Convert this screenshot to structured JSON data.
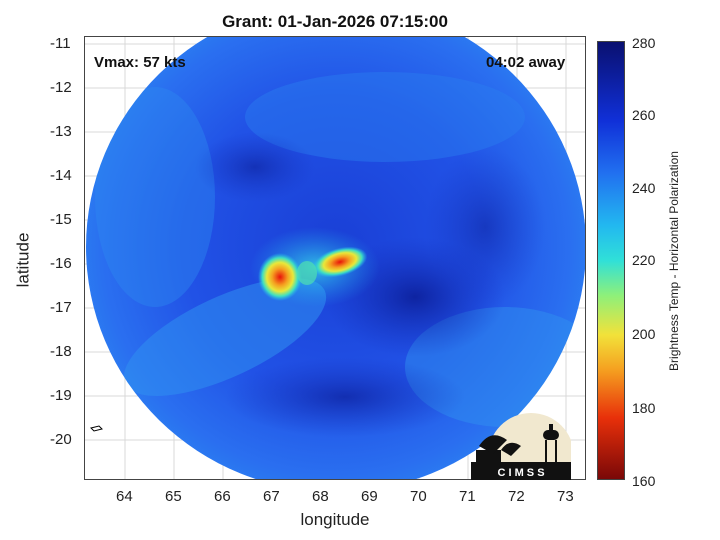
{
  "title": "Grant: 01-Jan-2026 07:15:00",
  "vmax_label": "Vmax: 57 kts",
  "time_away": "04:02 away",
  "xlabel": "longitude",
  "ylabel": "latitude",
  "x_ticks": [
    "64",
    "65",
    "66",
    "67",
    "68",
    "69",
    "70",
    "71",
    "72",
    "73"
  ],
  "y_ticks": [
    "-11",
    "-12",
    "-13",
    "-14",
    "-15",
    "-16",
    "-17",
    "-18",
    "-19",
    "-20"
  ],
  "colorbar": {
    "label": "Brightness Temp - Horizontal Polarization",
    "ticks": [
      "280",
      "260",
      "240",
      "220",
      "200",
      "180",
      "160"
    ],
    "min": 160,
    "max": 280
  },
  "logo_text": "C I M S S",
  "colors": {
    "dark_blue": "#0a1a8c",
    "blue": "#1f4fe0",
    "cyan": "#22b8f0",
    "yellow": "#f2e23a",
    "red": "#e8120a"
  }
}
